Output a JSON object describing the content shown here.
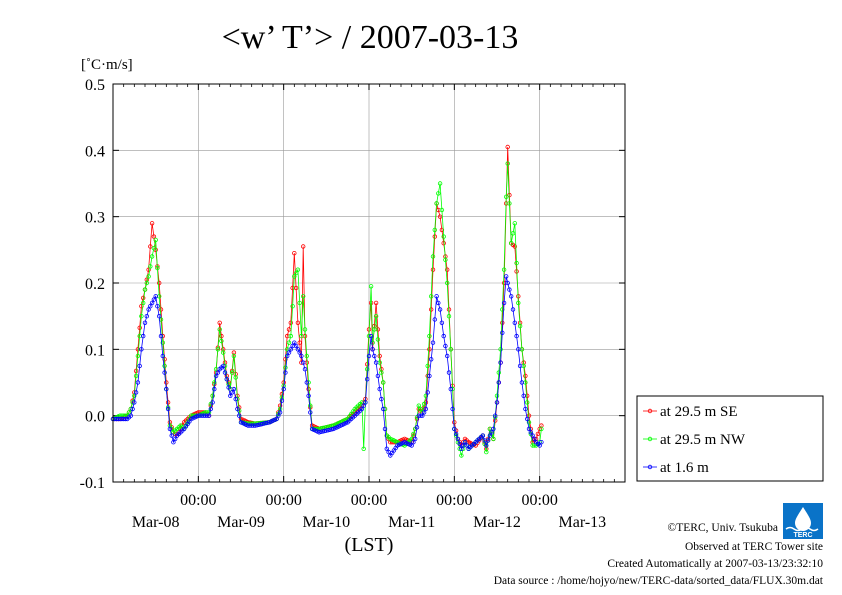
{
  "chart_data": {
    "type": "line",
    "title": "<w’ T’> / 2007-03-13",
    "ylabel": "[˚C·m/s]",
    "xlabel": "(LST)",
    "ylim": [
      -0.1,
      0.5
    ],
    "yticks": [
      -0.1,
      0.0,
      0.1,
      0.2,
      0.3,
      0.4,
      0.5
    ],
    "ytick_labels": [
      "-0.1",
      "0.0",
      "0.1",
      "0.2",
      "0.3",
      "0.4",
      "0.5"
    ],
    "xlim_hours": [
      0,
      144
    ],
    "x_unit": "hours from 2007-03-08 00:00 LST",
    "xticks_hours": [
      24,
      48,
      72,
      96,
      120
    ],
    "xtick_labels": [
      "00:00",
      "00:00",
      "00:00",
      "00:00",
      "00:00"
    ],
    "date_labels": [
      {
        "hour": 12,
        "label": "Mar-08"
      },
      {
        "hour": 36,
        "label": "Mar-09"
      },
      {
        "hour": 60,
        "label": "Mar-10"
      },
      {
        "hour": 84,
        "label": "Mar-11"
      },
      {
        "hour": 108,
        "label": "Mar-12"
      },
      {
        "hour": 132,
        "label": "Mar-13"
      }
    ],
    "grid": true,
    "legend_position": "right",
    "series": [
      {
        "name": "at 29.5 m SE",
        "color": "#ff0000",
        "points": [
          [
            0,
            -0.005
          ],
          [
            2,
            -0.005
          ],
          [
            4,
            0.0
          ],
          [
            5,
            0.01
          ],
          [
            6,
            0.035
          ],
          [
            7,
            0.1
          ],
          [
            8,
            0.165
          ],
          [
            9,
            0.19
          ],
          [
            10,
            0.22
          ],
          [
            11,
            0.29
          ],
          [
            12,
            0.25
          ],
          [
            13,
            0.2
          ],
          [
            14,
            0.12
          ],
          [
            15,
            0.05
          ],
          [
            16,
            -0.01
          ],
          [
            17,
            -0.025
          ],
          [
            18,
            -0.03
          ],
          [
            19,
            -0.02
          ],
          [
            20,
            -0.01
          ],
          [
            22,
            0.0
          ],
          [
            24,
            0.005
          ],
          [
            26,
            0.005
          ],
          [
            27,
            0.0
          ],
          [
            28,
            0.03
          ],
          [
            29,
            0.065
          ],
          [
            30,
            0.14
          ],
          [
            31,
            0.1
          ],
          [
            32,
            0.06
          ],
          [
            33,
            0.04
          ],
          [
            34,
            0.095
          ],
          [
            35,
            0.03
          ],
          [
            36,
            -0.005
          ],
          [
            38,
            -0.01
          ],
          [
            40,
            -0.012
          ],
          [
            44,
            -0.01
          ],
          [
            46,
            -0.005
          ],
          [
            47,
            0.015
          ],
          [
            48,
            0.05
          ],
          [
            49,
            0.12
          ],
          [
            50,
            0.14
          ],
          [
            51,
            0.245
          ],
          [
            52,
            0.14
          ],
          [
            53,
            0.08
          ],
          [
            53.5,
            0.255
          ],
          [
            54,
            0.12
          ],
          [
            55,
            0.04
          ],
          [
            56,
            -0.015
          ],
          [
            58,
            -0.02
          ],
          [
            62,
            -0.015
          ],
          [
            66,
            -0.005
          ],
          [
            68,
            0.005
          ],
          [
            70,
            0.015
          ],
          [
            71,
            0.025
          ],
          [
            72,
            0.13
          ],
          [
            72.6,
            0.17
          ],
          [
            73,
            0.1
          ],
          [
            74,
            0.17
          ],
          [
            75,
            0.09
          ],
          [
            76,
            0.05
          ],
          [
            77,
            -0.03
          ],
          [
            78,
            -0.04
          ],
          [
            80,
            -0.04
          ],
          [
            82,
            -0.035
          ],
          [
            84,
            -0.04
          ],
          [
            85,
            -0.02
          ],
          [
            86,
            0.01
          ],
          [
            87,
            0.005
          ],
          [
            88,
            0.02
          ],
          [
            89,
            0.1
          ],
          [
            90,
            0.22
          ],
          [
            91,
            0.32
          ],
          [
            92,
            0.3
          ],
          [
            93,
            0.26
          ],
          [
            94,
            0.22
          ],
          [
            95,
            0.1
          ],
          [
            96,
            -0.01
          ],
          [
            97,
            -0.035
          ],
          [
            98,
            -0.045
          ],
          [
            99,
            -0.035
          ],
          [
            100,
            -0.04
          ],
          [
            102,
            -0.045
          ],
          [
            104,
            -0.03
          ],
          [
            105,
            -0.05
          ],
          [
            106,
            -0.02
          ],
          [
            107,
            -0.035
          ],
          [
            108,
            0.02
          ],
          [
            109,
            0.08
          ],
          [
            110,
            0.2
          ],
          [
            110.6,
            0.32
          ],
          [
            111,
            0.405
          ],
          [
            112,
            0.26
          ],
          [
            113,
            0.255
          ],
          [
            114,
            0.18
          ],
          [
            115,
            0.1
          ],
          [
            116,
            0.06
          ],
          [
            117,
            0.0
          ],
          [
            118,
            -0.04
          ],
          [
            119,
            -0.035
          ],
          [
            120,
            -0.02
          ],
          [
            120.5,
            -0.015
          ]
        ]
      },
      {
        "name": "at 29.5 m NW",
        "color": "#00ff00",
        "points": [
          [
            0,
            -0.005
          ],
          [
            2,
            0.0
          ],
          [
            4,
            0.0
          ],
          [
            5,
            0.01
          ],
          [
            6,
            0.03
          ],
          [
            7,
            0.09
          ],
          [
            8,
            0.15
          ],
          [
            9,
            0.19
          ],
          [
            10,
            0.21
          ],
          [
            11,
            0.24
          ],
          [
            12,
            0.265
          ],
          [
            13,
            0.18
          ],
          [
            14,
            0.11
          ],
          [
            15,
            0.04
          ],
          [
            16,
            -0.015
          ],
          [
            17,
            -0.025
          ],
          [
            18,
            -0.02
          ],
          [
            19,
            -0.015
          ],
          [
            20,
            -0.02
          ],
          [
            22,
            0.0
          ],
          [
            24,
            0.0
          ],
          [
            26,
            0.005
          ],
          [
            27,
            0.005
          ],
          [
            28,
            0.03
          ],
          [
            29,
            0.07
          ],
          [
            30,
            0.13
          ],
          [
            31,
            0.095
          ],
          [
            32,
            0.055
          ],
          [
            33,
            0.04
          ],
          [
            34,
            0.09
          ],
          [
            35,
            0.025
          ],
          [
            36,
            -0.01
          ],
          [
            38,
            -0.012
          ],
          [
            40,
            -0.012
          ],
          [
            44,
            -0.01
          ],
          [
            46,
            -0.005
          ],
          [
            47,
            0.01
          ],
          [
            48,
            0.045
          ],
          [
            49,
            0.1
          ],
          [
            50,
            0.12
          ],
          [
            51,
            0.21
          ],
          [
            52,
            0.22
          ],
          [
            53,
            0.12
          ],
          [
            53.5,
            0.18
          ],
          [
            54,
            0.13
          ],
          [
            55,
            0.05
          ],
          [
            56,
            -0.02
          ],
          [
            58,
            -0.02
          ],
          [
            62,
            -0.015
          ],
          [
            66,
            -0.005
          ],
          [
            68,
            0.01
          ],
          [
            70,
            0.02
          ],
          [
            70.5,
            -0.05
          ],
          [
            71,
            0.02
          ],
          [
            72,
            0.12
          ],
          [
            72.6,
            0.195
          ],
          [
            73,
            0.11
          ],
          [
            74,
            0.15
          ],
          [
            75,
            0.08
          ],
          [
            76,
            0.05
          ],
          [
            77,
            -0.03
          ],
          [
            78,
            -0.035
          ],
          [
            80,
            -0.04
          ],
          [
            82,
            -0.045
          ],
          [
            84,
            -0.035
          ],
          [
            85,
            -0.02
          ],
          [
            86,
            0.015
          ],
          [
            87,
            0.005
          ],
          [
            88,
            0.03
          ],
          [
            89,
            0.12
          ],
          [
            90,
            0.24
          ],
          [
            91,
            0.32
          ],
          [
            92,
            0.35
          ],
          [
            93,
            0.27
          ],
          [
            94,
            0.2
          ],
          [
            95,
            0.1
          ],
          [
            96,
            -0.02
          ],
          [
            97,
            -0.04
          ],
          [
            98,
            -0.06
          ],
          [
            99,
            -0.04
          ],
          [
            100,
            -0.05
          ],
          [
            102,
            -0.04
          ],
          [
            104,
            -0.03
          ],
          [
            105,
            -0.055
          ],
          [
            106,
            -0.02
          ],
          [
            107,
            -0.035
          ],
          [
            108,
            0.03
          ],
          [
            109,
            0.1
          ],
          [
            110,
            0.22
          ],
          [
            110.6,
            0.33
          ],
          [
            111,
            0.38
          ],
          [
            112,
            0.26
          ],
          [
            113,
            0.29
          ],
          [
            114,
            0.17
          ],
          [
            115,
            0.1
          ],
          [
            116,
            0.05
          ],
          [
            117,
            -0.01
          ],
          [
            118,
            -0.045
          ],
          [
            119,
            -0.045
          ],
          [
            120,
            -0.04
          ],
          [
            120.5,
            -0.02
          ]
        ]
      },
      {
        "name": "at 1.6 m",
        "color": "#0000ff",
        "points": [
          [
            0,
            -0.005
          ],
          [
            2,
            -0.005
          ],
          [
            4,
            -0.005
          ],
          [
            5,
            0.0
          ],
          [
            6,
            0.02
          ],
          [
            7,
            0.05
          ],
          [
            8,
            0.1
          ],
          [
            9,
            0.14
          ],
          [
            10,
            0.16
          ],
          [
            11,
            0.17
          ],
          [
            12,
            0.18
          ],
          [
            13,
            0.15
          ],
          [
            14,
            0.09
          ],
          [
            15,
            0.04
          ],
          [
            16,
            -0.02
          ],
          [
            17,
            -0.04
          ],
          [
            18,
            -0.03
          ],
          [
            19,
            -0.025
          ],
          [
            20,
            -0.02
          ],
          [
            22,
            -0.005
          ],
          [
            24,
            0.0
          ],
          [
            26,
            0.0
          ],
          [
            27,
            0.0
          ],
          [
            28,
            0.02
          ],
          [
            29,
            0.06
          ],
          [
            30,
            0.07
          ],
          [
            31,
            0.075
          ],
          [
            32,
            0.055
          ],
          [
            33,
            0.03
          ],
          [
            34,
            0.04
          ],
          [
            35,
            0.01
          ],
          [
            36,
            -0.01
          ],
          [
            38,
            -0.015
          ],
          [
            40,
            -0.015
          ],
          [
            44,
            -0.01
          ],
          [
            46,
            -0.005
          ],
          [
            47,
            0.005
          ],
          [
            48,
            0.04
          ],
          [
            49,
            0.09
          ],
          [
            50,
            0.1
          ],
          [
            51,
            0.11
          ],
          [
            52,
            0.1
          ],
          [
            53,
            0.09
          ],
          [
            53.5,
            0.08
          ],
          [
            54,
            0.07
          ],
          [
            55,
            0.03
          ],
          [
            56,
            -0.02
          ],
          [
            58,
            -0.025
          ],
          [
            62,
            -0.02
          ],
          [
            66,
            -0.01
          ],
          [
            68,
            0.0
          ],
          [
            70,
            0.01
          ],
          [
            71,
            0.02
          ],
          [
            72,
            0.09
          ],
          [
            72.6,
            0.12
          ],
          [
            73,
            0.1
          ],
          [
            74,
            0.08
          ],
          [
            75,
            0.04
          ],
          [
            76,
            0.01
          ],
          [
            77,
            -0.05
          ],
          [
            78,
            -0.06
          ],
          [
            80,
            -0.045
          ],
          [
            82,
            -0.04
          ],
          [
            84,
            -0.045
          ],
          [
            85,
            -0.035
          ],
          [
            86,
            0.0
          ],
          [
            87,
            0.0
          ],
          [
            88,
            0.01
          ],
          [
            89,
            0.06
          ],
          [
            90,
            0.11
          ],
          [
            91,
            0.18
          ],
          [
            92,
            0.16
          ],
          [
            93,
            0.12
          ],
          [
            94,
            0.09
          ],
          [
            95,
            0.04
          ],
          [
            96,
            -0.02
          ],
          [
            97,
            -0.035
          ],
          [
            98,
            -0.05
          ],
          [
            99,
            -0.04
          ],
          [
            100,
            -0.05
          ],
          [
            102,
            -0.04
          ],
          [
            104,
            -0.03
          ],
          [
            105,
            -0.045
          ],
          [
            106,
            -0.03
          ],
          [
            107,
            -0.02
          ],
          [
            108,
            0.02
          ],
          [
            109,
            0.08
          ],
          [
            110,
            0.17
          ],
          [
            110.6,
            0.21
          ],
          [
            111,
            0.2
          ],
          [
            112,
            0.18
          ],
          [
            113,
            0.14
          ],
          [
            114,
            0.1
          ],
          [
            115,
            0.05
          ],
          [
            116,
            0.01
          ],
          [
            117,
            -0.02
          ],
          [
            118,
            -0.03
          ],
          [
            119,
            -0.04
          ],
          [
            120,
            -0.045
          ],
          [
            120.5,
            -0.04
          ]
        ]
      }
    ]
  },
  "credits": {
    "copyright": "©TERC, Univ. Tsukuba",
    "observed": "Observed at TERC Tower site",
    "created": "Created Automatically at 2007-03-13/23:32:10",
    "source": "Data source : /home/hojyo/new/TERC-data/sorted_data/FLUX.30m.dat",
    "logo_text": "TERC"
  }
}
